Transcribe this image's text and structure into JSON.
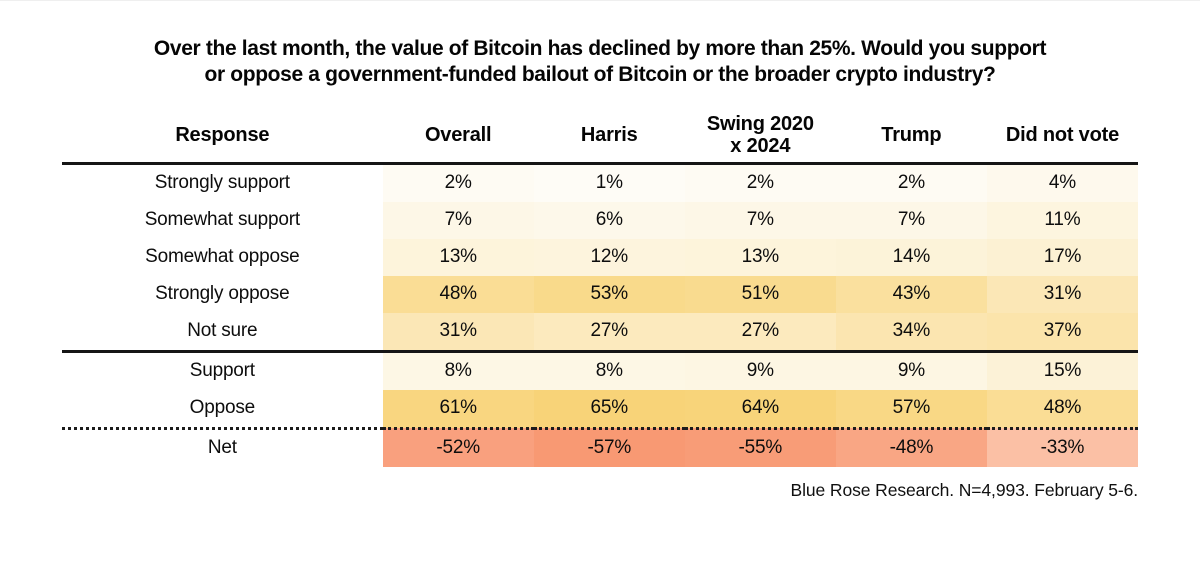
{
  "page": {
    "title_line1": "Over the last month, the value of Bitcoin has declined by more than 25%. Would you support",
    "title_line2": "or oppose a government-funded bailout of Bitcoin or the broader crypto industry?",
    "source_note": "Blue Rose Research. N=4,993. February 5-6."
  },
  "colors": {
    "text": "#0D0D0D",
    "rule": "#151515",
    "background": "#FFFFFF",
    "heat_positive_high": "#F8D378",
    "heat_positive_low": "#FEFCF6",
    "heat_negative_deep": "#F89973",
    "heat_negative_light": "#FBC0A5"
  },
  "chart_data": {
    "type": "table",
    "title": "Over the last month, the value of Bitcoin has declined by more than 25%. Would you support or oppose a government-funded bailout of Bitcoin or the broader crypto industry?",
    "columns": [
      "Response",
      "Overall",
      "Harris",
      "Swing 2020\nx 2024",
      "Trump",
      "Did not vote"
    ],
    "rows": [
      {
        "label": "Strongly support",
        "values": [
          "2%",
          "1%",
          "2%",
          "2%",
          "4%"
        ],
        "cell_colors": [
          "#FEFBF3",
          "#FEFCF6",
          "#FEFBF3",
          "#FEFBF3",
          "#FEF9ED"
        ]
      },
      {
        "label": "Somewhat support",
        "values": [
          "7%",
          "6%",
          "7%",
          "7%",
          "11%"
        ],
        "cell_colors": [
          "#FDF7E7",
          "#FDF8EA",
          "#FDF7E7",
          "#FDF7E7",
          "#FDF5DF"
        ]
      },
      {
        "label": "Somewhat oppose",
        "values": [
          "13%",
          "12%",
          "13%",
          "14%",
          "17%"
        ],
        "cell_colors": [
          "#FDF4DB",
          "#FDF4DD",
          "#FDF4DB",
          "#FCF3D9",
          "#FCF1D3"
        ]
      },
      {
        "label": "Strongly oppose",
        "values": [
          "48%",
          "53%",
          "51%",
          "43%",
          "31%"
        ],
        "cell_colors": [
          "#FADD95",
          "#F9DA8B",
          "#F9DB8F",
          "#FAE09E",
          "#FBE7B6"
        ]
      },
      {
        "label": "Not sure",
        "values": [
          "31%",
          "27%",
          "27%",
          "34%",
          "37%"
        ],
        "cell_colors": [
          "#FBE7B6",
          "#FCEABE",
          "#FCEABE",
          "#FBE5B0",
          "#FBE4AB"
        ]
      },
      {
        "label": "Support",
        "values": [
          "8%",
          "8%",
          "9%",
          "9%",
          "15%"
        ],
        "cell_colors": [
          "#FDF7E5",
          "#FDF7E5",
          "#FDF6E3",
          "#FDF6E3",
          "#FCF2D7"
        ]
      },
      {
        "label": "Oppose",
        "values": [
          "61%",
          "65%",
          "64%",
          "57%",
          "48%"
        ],
        "cell_colors": [
          "#F9D680",
          "#F8D378",
          "#F8D47A",
          "#F9D885",
          "#FADD95"
        ]
      },
      {
        "label": "Net",
        "values": [
          "-52%",
          "-57%",
          "-55%",
          "-48%",
          "-33%"
        ],
        "cell_colors": [
          "#F9A07E",
          "#F89973",
          "#F89C77",
          "#F9A684",
          "#FBC0A5"
        ]
      }
    ],
    "layout": {
      "grid": "off",
      "heatmap": "value-shaded cells, gold for positive, salmon for negative net",
      "thick_rule_after_row_indexes": [
        4
      ],
      "dotted_rule_after_row_indexes": [
        6
      ],
      "source_note": "Blue Rose Research. N=4,993. February 5-6."
    }
  }
}
